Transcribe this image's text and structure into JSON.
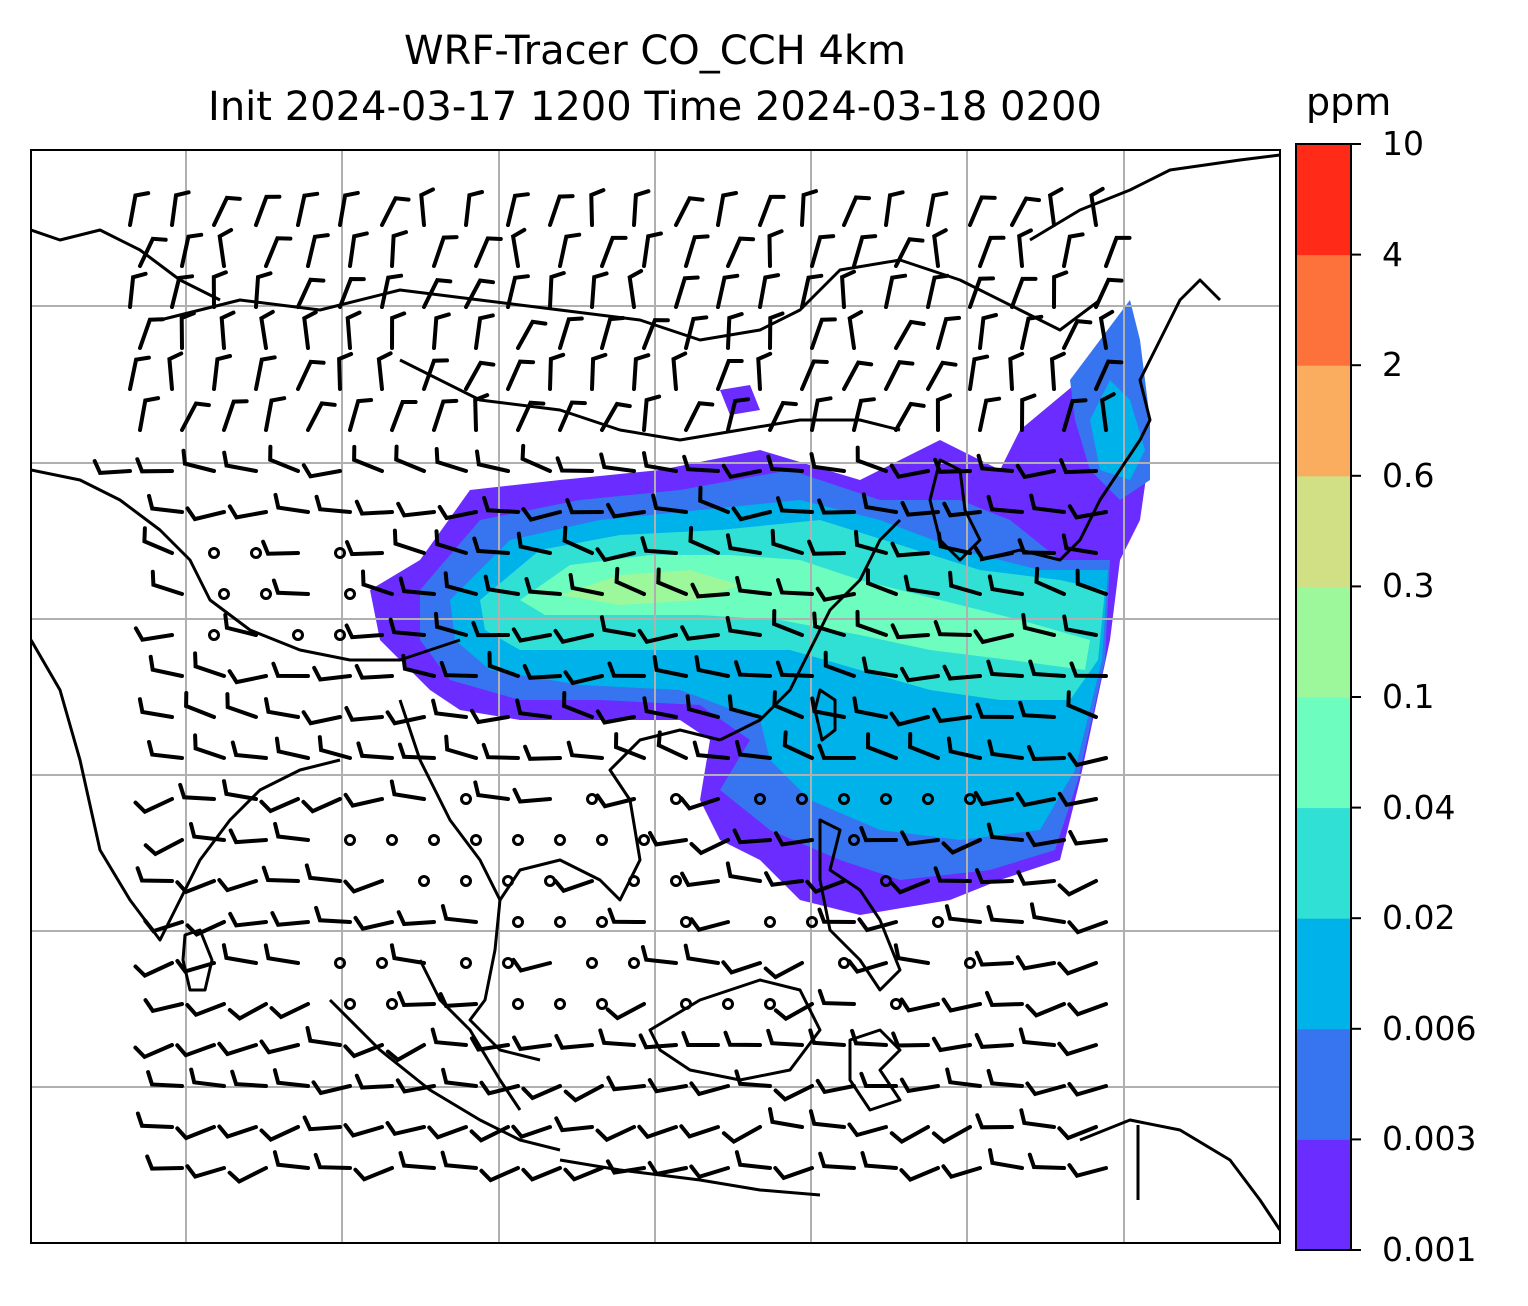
{
  "title": {
    "line1": "WRF-Tracer CO_CCH 4km",
    "line2": "Init 2024-03-17 1200 Time 2024-03-18 0200"
  },
  "colorbar": {
    "unit": "ppm",
    "labels": [
      "0.001",
      "0.003",
      "0.006",
      "0.02",
      "0.04",
      "0.1",
      "0.3",
      "0.6",
      "2",
      "4",
      "10"
    ],
    "colors": [
      "#6a2cff",
      "#3774f0",
      "#00b2ea",
      "#30e0d5",
      "#6cfdbf",
      "#9cf89a",
      "#d1e085",
      "#fbad5f",
      "#fd713a",
      "#ff2b18"
    ]
  },
  "map": {
    "field": "CO_CCH tracer concentration with wind barbs",
    "grid": true,
    "coastlines": true
  }
}
